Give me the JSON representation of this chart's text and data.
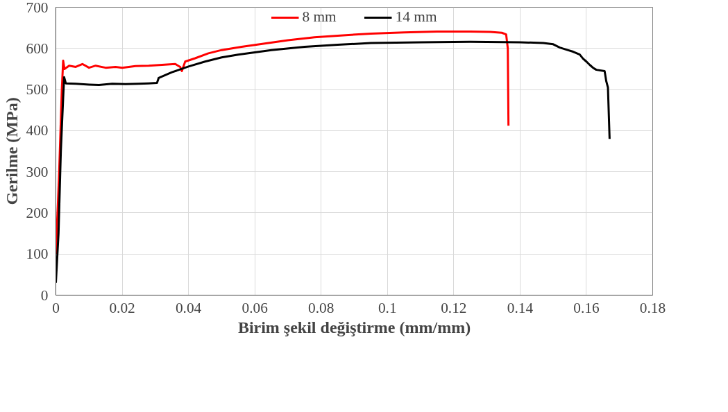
{
  "chart_data": {
    "type": "line",
    "xlabel": "Birim şekil değiştirme (mm/mm)",
    "ylabel": "Gerilme (MPa)",
    "xlim": [
      0,
      0.18
    ],
    "xticks": [
      0,
      0.02,
      0.04,
      0.06,
      0.08,
      0.1,
      0.12,
      0.14,
      0.16,
      0.18
    ],
    "ylim": [
      0,
      700
    ],
    "yticks": [
      0,
      100,
      200,
      300,
      400,
      500,
      600,
      700
    ],
    "grid": true,
    "legend": "top",
    "line_style": "solid",
    "series": [
      {
        "name": "8 mm",
        "color": "#ff0000",
        "x": [
          0,
          0.001,
          0.0018,
          0.0022,
          0.0026,
          0.004,
          0.006,
          0.008,
          0.01,
          0.012,
          0.015,
          0.018,
          0.02,
          0.024,
          0.028,
          0.032,
          0.036,
          0.0375,
          0.038,
          0.039,
          0.042,
          0.046,
          0.05,
          0.056,
          0.063,
          0.07,
          0.078,
          0.085,
          0.095,
          0.105,
          0.115,
          0.125,
          0.131,
          0.1345,
          0.1358,
          0.1363,
          0.1365
        ],
        "values": [
          100,
          300,
          500,
          570,
          550,
          558,
          555,
          562,
          553,
          558,
          553,
          555,
          553,
          557,
          558,
          560,
          562,
          555,
          545,
          568,
          576,
          588,
          596,
          604,
          612,
          620,
          627,
          631,
          636,
          639,
          641,
          641,
          640,
          638,
          634,
          600,
          412
        ]
      },
      {
        "name": "14 mm",
        "color": "#000000",
        "x": [
          0,
          0.0008,
          0.0015,
          0.0022,
          0.0025,
          0.003,
          0.006,
          0.01,
          0.013,
          0.017,
          0.021,
          0.025,
          0.028,
          0.0305,
          0.031,
          0.035,
          0.04,
          0.045,
          0.05,
          0.055,
          0.065,
          0.075,
          0.085,
          0.095,
          0.11,
          0.125,
          0.14,
          0.147,
          0.15,
          0.152,
          0.154,
          0.156,
          0.158,
          0.159,
          0.16,
          0.161,
          0.162,
          0.163,
          0.1655,
          0.166,
          0.1665,
          0.167
        ],
        "values": [
          30,
          150,
          350,
          480,
          530,
          515,
          514,
          512,
          511,
          514,
          513,
          514,
          515,
          516,
          528,
          542,
          556,
          568,
          578,
          585,
          596,
          604,
          609,
          613,
          615,
          616,
          615,
          613,
          610,
          602,
          597,
          592,
          585,
          575,
          568,
          560,
          553,
          548,
          545,
          520,
          505,
          380
        ]
      }
    ]
  }
}
